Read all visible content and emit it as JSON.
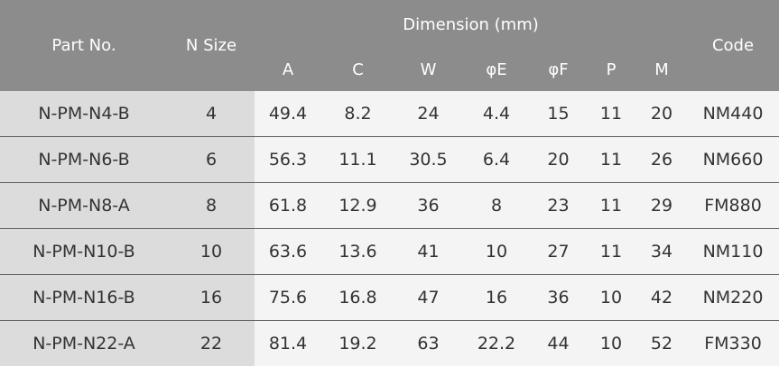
{
  "header": {
    "part_no": "Part No.",
    "n_size": "N Size",
    "dimension": "Dimension (mm)",
    "code": "Code",
    "dims": [
      "A",
      "C",
      "W",
      "φE",
      "φF",
      "P",
      "M"
    ]
  },
  "rows": [
    {
      "part": "N-PM-N4-B",
      "n": "4",
      "a": "49.4",
      "c": "8.2",
      "w": "24",
      "e": "4.4",
      "f": "15",
      "p": "11",
      "m": "20",
      "code": "NM440"
    },
    {
      "part": "N-PM-N6-B",
      "n": "6",
      "a": "56.3",
      "c": "11.1",
      "w": "30.5",
      "e": "6.4",
      "f": "20",
      "p": "11",
      "m": "26",
      "code": "NM660"
    },
    {
      "part": "N-PM-N8-A",
      "n": "8",
      "a": "61.8",
      "c": "12.9",
      "w": "36",
      "e": "8",
      "f": "23",
      "p": "11",
      "m": "29",
      "code": "FM880"
    },
    {
      "part": "N-PM-N10-B",
      "n": "10",
      "a": "63.6",
      "c": "13.6",
      "w": "41",
      "e": "10",
      "f": "27",
      "p": "11",
      "m": "34",
      "code": "NM110"
    },
    {
      "part": "N-PM-N16-B",
      "n": "16",
      "a": "75.6",
      "c": "16.8",
      "w": "47",
      "e": "16",
      "f": "36",
      "p": "10",
      "m": "42",
      "code": "NM220"
    },
    {
      "part": "N-PM-N22-A",
      "n": "22",
      "a": "81.4",
      "c": "19.2",
      "w": "63",
      "e": "22.2",
      "f": "44",
      "p": "10",
      "m": "52",
      "code": "FM330"
    }
  ]
}
